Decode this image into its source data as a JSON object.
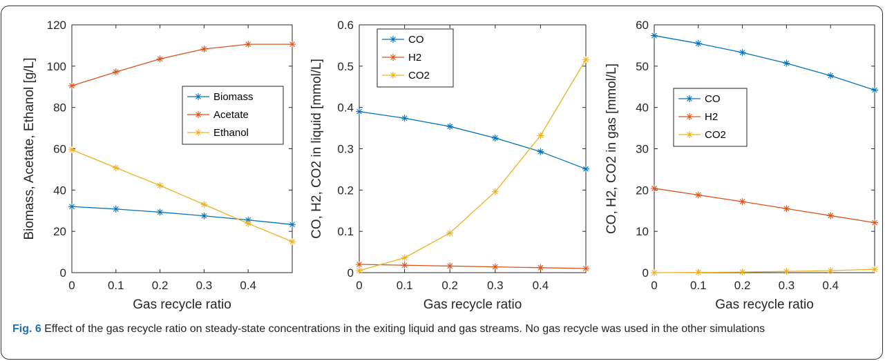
{
  "caption": {
    "label": "Fig. 6",
    "text": " Effect of the gas recycle ratio on steady-state concentrations in the exiting liquid and gas streams. No gas recycle was used in the other simulations"
  },
  "colors": {
    "blue": "#0072bd",
    "orange": "#d95319",
    "yellow": "#edb120"
  },
  "chart_data": [
    {
      "type": "line",
      "xlabel": "Gas recycle ratio",
      "ylabel": "Biomass, Acetate, Ethanol [g/L]",
      "xlim": [
        0,
        0.5
      ],
      "ylim": [
        0,
        120
      ],
      "xticks": [
        "0",
        "0.1",
        "0.2",
        "0.3",
        "0.4"
      ],
      "yticks": [
        "0",
        "20",
        "40",
        "60",
        "80",
        "100",
        "120"
      ],
      "legend_position": "right",
      "x": [
        0,
        0.1,
        0.2,
        0.3,
        0.4,
        0.5
      ],
      "series": [
        {
          "name": "Biomass",
          "color": "#0072bd",
          "values": [
            32,
            30.8,
            29.3,
            27.5,
            25.5,
            23.3
          ]
        },
        {
          "name": "Acetate",
          "color": "#d95319",
          "values": [
            90.5,
            97.2,
            103.5,
            108.3,
            110.6,
            110.6
          ]
        },
        {
          "name": "Ethanol",
          "color": "#edb120",
          "values": [
            59.5,
            50.8,
            42.2,
            33,
            23.8,
            15
          ]
        }
      ]
    },
    {
      "type": "line",
      "xlabel": "Gas recycle ratio",
      "ylabel": "CO, H2, CO2 in liquid [mmol/L]",
      "xlim": [
        0,
        0.5
      ],
      "ylim": [
        0,
        0.6
      ],
      "xticks": [
        "0",
        "0.1",
        "0.2",
        "0.3",
        "0.4"
      ],
      "yticks": [
        "0",
        "0.1",
        "0.2",
        "0.3",
        "0.4",
        "0.5",
        "0.6"
      ],
      "legend_position": "top-left",
      "x": [
        0,
        0.1,
        0.2,
        0.3,
        0.4,
        0.5
      ],
      "series": [
        {
          "name": "CO",
          "color": "#0072bd",
          "values": [
            0.39,
            0.374,
            0.354,
            0.326,
            0.293,
            0.251
          ]
        },
        {
          "name": "H2",
          "color": "#d95319",
          "values": [
            0.02,
            0.018,
            0.016,
            0.014,
            0.012,
            0.01
          ]
        },
        {
          "name": "CO2",
          "color": "#edb120",
          "values": [
            0.005,
            0.036,
            0.096,
            0.196,
            0.332,
            0.516
          ]
        }
      ]
    },
    {
      "type": "line",
      "xlabel": "Gas recycle ratio",
      "ylabel": "CO, H2, CO2 in gas [mmol/L]",
      "xlim": [
        0,
        0.5
      ],
      "ylim": [
        0,
        60
      ],
      "xticks": [
        "0",
        "0.1",
        "0.2",
        "0.3",
        "0.4"
      ],
      "yticks": [
        "0",
        "10",
        "20",
        "30",
        "40",
        "50",
        "60"
      ],
      "legend_position": "left",
      "x": [
        0,
        0.1,
        0.2,
        0.3,
        0.4,
        0.5
      ],
      "series": [
        {
          "name": "CO",
          "color": "#0072bd",
          "values": [
            57.4,
            55.5,
            53.3,
            50.7,
            47.7,
            44.2
          ]
        },
        {
          "name": "H2",
          "color": "#d95319",
          "values": [
            20.4,
            18.8,
            17.2,
            15.5,
            13.8,
            12.1
          ]
        },
        {
          "name": "CO2",
          "color": "#edb120",
          "values": [
            0,
            0.05,
            0.15,
            0.3,
            0.5,
            0.8
          ]
        }
      ]
    }
  ]
}
